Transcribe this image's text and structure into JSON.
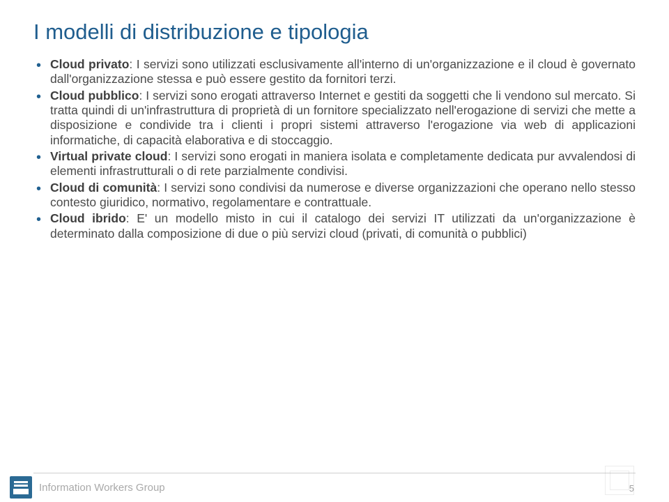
{
  "title": "I modelli di distribuzione e tipologia",
  "items": [
    {
      "bold": "Cloud privato",
      "text": ": I servizi sono utilizzati esclusivamente all'interno di un'organizzazione e il cloud è governato dall'organizzazione stessa e può essere gestito da fornitori terzi."
    },
    {
      "bold": "Cloud pubblico",
      "text": ": I servizi sono erogati attraverso Internet e gestiti da soggetti che li vendono sul mercato. Si tratta quindi di un'infrastruttura di proprietà di un fornitore specializzato nell'erogazione di servizi che mette a disposizione e condivide tra i clienti i propri sistemi attraverso l'erogazione via web di applicazioni informatiche, di capacità elaborativa e di stoccaggio."
    },
    {
      "bold": "Virtual private cloud",
      "text": ": I servizi sono erogati in maniera isolata e completamente dedicata pur avvalendosi di elementi infrastrutturali o di rete parzialmente condivisi."
    },
    {
      "bold": "Cloud di comunità",
      "text": ": I servizi sono condivisi da numerose e diverse organizzazioni che operano nello stesso contesto giuridico, normativo, regolamentare e contrattuale."
    },
    {
      "bold": "Cloud ibrido",
      "text": ": E' un modello misto in cui il catalogo dei servizi IT utilizzati da un'organizzazione è determinato dalla composizione di due o più servizi cloud (privati, di comunità o pubblici)"
    }
  ],
  "footer_text": "Information Workers Group",
  "page_number": "5",
  "colors": {
    "title": "#1f5d8e",
    "bullet": "#206090",
    "body": "#4a4a4a",
    "footer": "#a9a9a9",
    "logo_bg": "#2b6a94"
  }
}
